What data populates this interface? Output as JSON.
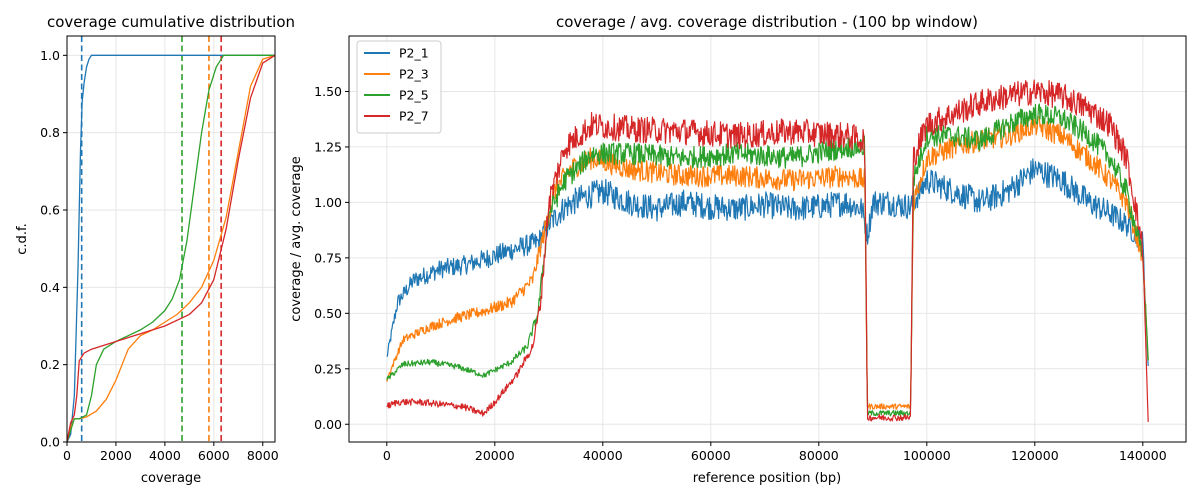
{
  "colors": {
    "P2_1": "#1f77b4",
    "P2_3": "#ff7f0e",
    "P2_5": "#2ca02c",
    "P2_7": "#d62728",
    "grid": "#e6e6e6",
    "axis": "#000000"
  },
  "chart_data": [
    {
      "type": "line",
      "title": "coverage cumulative distribution",
      "xlabel": "coverage",
      "ylabel": "c.d.f.",
      "xlim": [
        0,
        8500
      ],
      "ylim": [
        0,
        1.05
      ],
      "xticks": [
        0,
        2000,
        4000,
        6000,
        8000
      ],
      "xtick_labels": [
        "0",
        "2000",
        "4000",
        "6000",
        "8000"
      ],
      "yticks": [
        0,
        0.2,
        0.4,
        0.6,
        0.8,
        1.0
      ],
      "ytick_labels": [
        "0.0",
        "0.2",
        "0.4",
        "0.6",
        "0.8",
        "1.0"
      ],
      "grid": true,
      "series": [
        {
          "name": "P2_1",
          "x": [
            0,
            150,
            300,
            450,
            550,
            620,
            700,
            800,
            900,
            1000,
            8500
          ],
          "y": [
            0,
            0.02,
            0.12,
            0.45,
            0.75,
            0.88,
            0.93,
            0.97,
            0.99,
            1.0,
            1.0
          ],
          "vline": 600
        },
        {
          "name": "P2_3",
          "x": [
            0,
            100,
            300,
            500,
            800,
            1200,
            1600,
            2000,
            2500,
            3000,
            3500,
            4000,
            4500,
            5000,
            5500,
            6000,
            6500,
            7000,
            7500,
            8000,
            8500
          ],
          "y": [
            0,
            0.03,
            0.06,
            0.06,
            0.065,
            0.08,
            0.11,
            0.16,
            0.24,
            0.275,
            0.29,
            0.31,
            0.33,
            0.36,
            0.4,
            0.47,
            0.58,
            0.75,
            0.92,
            0.99,
            1.0
          ],
          "vline": 5800
        },
        {
          "name": "P2_5",
          "x": [
            0,
            150,
            300,
            500,
            800,
            1000,
            1200,
            1500,
            2000,
            2500,
            3000,
            3500,
            4000,
            4300,
            4600,
            4900,
            5200,
            5500,
            5800,
            6100,
            6400,
            8500
          ],
          "y": [
            0,
            0.03,
            0.06,
            0.06,
            0.07,
            0.12,
            0.2,
            0.24,
            0.26,
            0.275,
            0.29,
            0.31,
            0.34,
            0.37,
            0.42,
            0.52,
            0.66,
            0.8,
            0.91,
            0.97,
            1.0,
            1.0
          ],
          "vline": 4700
        },
        {
          "name": "P2_7",
          "x": [
            0,
            150,
            300,
            400,
            500,
            700,
            1000,
            1500,
            2000,
            3000,
            4000,
            5000,
            5500,
            6000,
            6500,
            7000,
            7500,
            8000,
            8500
          ],
          "y": [
            0,
            0.05,
            0.07,
            0.12,
            0.21,
            0.23,
            0.24,
            0.25,
            0.26,
            0.28,
            0.3,
            0.33,
            0.36,
            0.42,
            0.55,
            0.73,
            0.89,
            0.98,
            1.0
          ],
          "vline": 6300
        }
      ]
    },
    {
      "type": "line",
      "title": "coverage / avg. coverage distribution - (100 bp window)",
      "xlabel": "reference position (bp)",
      "ylabel": "coverage / avg. coverage",
      "xlim": [
        -7000,
        148000
      ],
      "ylim": [
        -0.08,
        1.75
      ],
      "xticks": [
        0,
        20000,
        40000,
        60000,
        80000,
        100000,
        120000,
        140000
      ],
      "xtick_labels": [
        "0",
        "20000",
        "40000",
        "60000",
        "80000",
        "100000",
        "120000",
        "140000"
      ],
      "yticks": [
        0,
        0.25,
        0.5,
        0.75,
        1.0,
        1.25,
        1.5
      ],
      "ytick_labels": [
        "0.00",
        "0.25",
        "0.50",
        "0.75",
        "1.00",
        "1.25",
        "1.50"
      ],
      "grid": true,
      "legend_position": "upper-left",
      "series": [
        {
          "name": "P2_1",
          "x": [
            0,
            2000,
            5000,
            10000,
            15000,
            20000,
            25000,
            28000,
            30000,
            33000,
            36000,
            40000,
            45000,
            50000,
            55000,
            60000,
            65000,
            70000,
            75000,
            80000,
            85000,
            88000,
            89000,
            89500,
            90000,
            93000,
            97000,
            100000,
            105000,
            110000,
            115000,
            120000,
            125000,
            130000,
            134000,
            137000,
            140000,
            141000
          ],
          "y": [
            0.3,
            0.55,
            0.65,
            0.7,
            0.72,
            0.76,
            0.8,
            0.82,
            0.9,
            0.98,
            1.02,
            1.05,
            1.0,
            0.97,
            1.0,
            0.98,
            0.97,
            0.99,
            0.97,
            0.98,
            1.0,
            0.97,
            0.85,
            0.92,
            1.0,
            1.0,
            0.98,
            1.1,
            1.05,
            1.0,
            1.05,
            1.15,
            1.1,
            1.0,
            0.95,
            0.9,
            0.82,
            0.25
          ],
          "noise": 0.06
        },
        {
          "name": "P2_3",
          "x": [
            0,
            3000,
            8000,
            13000,
            18000,
            23000,
            27000,
            29000,
            31000,
            34000,
            38000,
            45000,
            55000,
            65000,
            75000,
            85000,
            88500,
            89000,
            97000,
            97500,
            100000,
            105000,
            110000,
            115000,
            120000,
            125000,
            130000,
            134000,
            137000,
            140000,
            141000
          ],
          "y": [
            0.2,
            0.38,
            0.44,
            0.48,
            0.51,
            0.55,
            0.65,
            0.85,
            1.05,
            1.15,
            1.2,
            1.15,
            1.12,
            1.12,
            1.1,
            1.12,
            1.1,
            0.08,
            0.08,
            1.0,
            1.2,
            1.25,
            1.28,
            1.3,
            1.35,
            1.3,
            1.2,
            1.1,
            1.0,
            0.75,
            0.3
          ],
          "noise": 0.05
        },
        {
          "name": "P2_5",
          "x": [
            0,
            3000,
            8000,
            13000,
            18000,
            23000,
            26000,
            28000,
            30000,
            33000,
            38000,
            45000,
            55000,
            65000,
            75000,
            85000,
            88500,
            89000,
            97000,
            97500,
            100000,
            105000,
            110000,
            115000,
            120000,
            125000,
            130000,
            134000,
            137000,
            140000,
            141000
          ],
          "y": [
            0.2,
            0.27,
            0.28,
            0.26,
            0.22,
            0.28,
            0.35,
            0.5,
            0.95,
            1.1,
            1.22,
            1.22,
            1.2,
            1.22,
            1.2,
            1.25,
            1.25,
            0.05,
            0.05,
            1.1,
            1.3,
            1.3,
            1.28,
            1.35,
            1.4,
            1.38,
            1.3,
            1.2,
            1.05,
            0.75,
            0.3
          ],
          "noise": 0.05
        },
        {
          "name": "P2_7",
          "x": [
            0,
            2000,
            6000,
            10000,
            14000,
            17500,
            18000,
            20000,
            24000,
            27000,
            28500,
            30000,
            33000,
            38000,
            45000,
            55000,
            65000,
            75000,
            85000,
            88500,
            89000,
            97000,
            97500,
            100000,
            105000,
            110000,
            115000,
            120000,
            125000,
            130000,
            134000,
            137000,
            140000,
            141000
          ],
          "y": [
            0.08,
            0.1,
            0.1,
            0.09,
            0.08,
            0.05,
            0.05,
            0.1,
            0.22,
            0.35,
            0.55,
            1.0,
            1.25,
            1.35,
            1.33,
            1.32,
            1.3,
            1.32,
            1.3,
            1.28,
            0.03,
            0.03,
            1.2,
            1.35,
            1.4,
            1.45,
            1.48,
            1.5,
            1.48,
            1.42,
            1.35,
            1.2,
            0.8,
            0.0
          ],
          "noise": 0.06
        }
      ]
    }
  ]
}
